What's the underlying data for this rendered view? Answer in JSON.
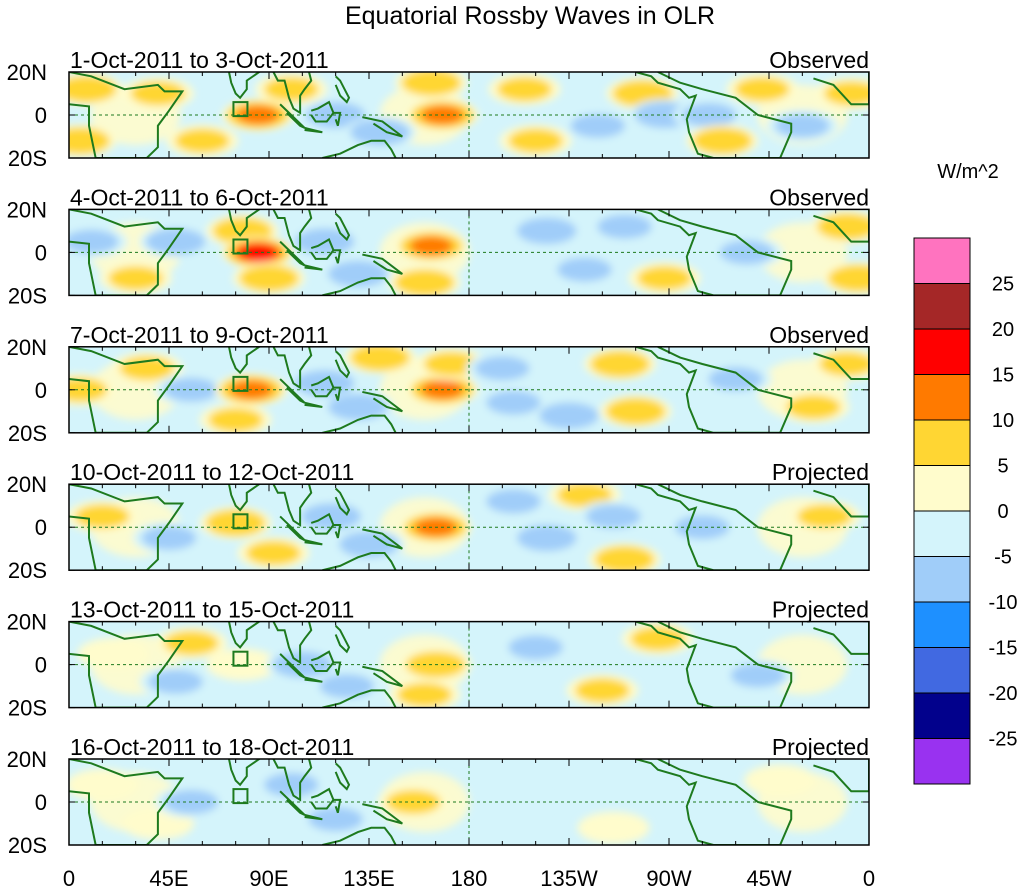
{
  "chart_data": {
    "type": "heatmap",
    "title": "Equatorial Rossby Waves in OLR",
    "units_label": "W/m^2",
    "y_tick_labels": [
      "20N",
      "0",
      "20S"
    ],
    "x_tick_labels": [
      "0",
      "45E",
      "90E",
      "135E",
      "180",
      "135W",
      "90W",
      "45W",
      "0"
    ],
    "x_range_deg_east": [
      0,
      360
    ],
    "y_range_deg": [
      -20,
      20
    ],
    "colorbar": {
      "levels": [
        -25,
        -20,
        -15,
        -10,
        -5,
        0,
        5,
        10,
        15,
        20,
        25
      ],
      "tick_labels": [
        "25",
        "20",
        "15",
        "10",
        "5",
        "0",
        "-5",
        "-10",
        "-15",
        "-20",
        "-25"
      ],
      "colors": [
        "#9932f0",
        "#02018c",
        "#4169e1",
        "#1e90ff",
        "#a0cdf9",
        "#d4f4fb",
        "#fffccc",
        "#ffd633",
        "#ff7a00",
        "#ff0000",
        "#a52727",
        "#ff73bf"
      ]
    },
    "panels": [
      {
        "date_range": "1-Oct-2011 to 3-Oct-2011",
        "status": "Observed",
        "features": [
          {
            "lon": 8,
            "lat": 12,
            "value": 11
          },
          {
            "lon": 5,
            "lat": -12,
            "value": 11
          },
          {
            "lon": 40,
            "lat": 10,
            "value": 7
          },
          {
            "lon": 60,
            "lat": -12,
            "value": 7
          },
          {
            "lon": 85,
            "lat": 0,
            "value": 13
          },
          {
            "lon": 100,
            "lat": 12,
            "value": 6
          },
          {
            "lon": 120,
            "lat": 0,
            "value": -11
          },
          {
            "lon": 140,
            "lat": -8,
            "value": -9
          },
          {
            "lon": 163,
            "lat": 15,
            "value": 11
          },
          {
            "lon": 168,
            "lat": 0,
            "value": 13
          },
          {
            "lon": 205,
            "lat": 12,
            "value": 8
          },
          {
            "lon": 210,
            "lat": -12,
            "value": 7
          },
          {
            "lon": 238,
            "lat": -5,
            "value": -8
          },
          {
            "lon": 258,
            "lat": 10,
            "value": 9
          },
          {
            "lon": 268,
            "lat": 0,
            "value": -11
          },
          {
            "lon": 288,
            "lat": 0,
            "value": -8
          },
          {
            "lon": 294,
            "lat": -12,
            "value": 10
          },
          {
            "lon": 312,
            "lat": 12,
            "value": 6
          },
          {
            "lon": 330,
            "lat": -5,
            "value": -7
          },
          {
            "lon": 352,
            "lat": 10,
            "value": 6
          }
        ]
      },
      {
        "date_range": "4-Oct-2011 to 6-Oct-2011",
        "status": "Observed",
        "features": [
          {
            "lon": 10,
            "lat": 5,
            "value": -8
          },
          {
            "lon": 30,
            "lat": -12,
            "value": 7
          },
          {
            "lon": 48,
            "lat": 5,
            "value": -9
          },
          {
            "lon": 78,
            "lat": 10,
            "value": 9
          },
          {
            "lon": 85,
            "lat": 0,
            "value": 18
          },
          {
            "lon": 90,
            "lat": -12,
            "value": 9
          },
          {
            "lon": 115,
            "lat": 5,
            "value": -11
          },
          {
            "lon": 130,
            "lat": -10,
            "value": -12
          },
          {
            "lon": 163,
            "lat": 3,
            "value": 13
          },
          {
            "lon": 160,
            "lat": -14,
            "value": 10
          },
          {
            "lon": 215,
            "lat": 10,
            "value": -9
          },
          {
            "lon": 232,
            "lat": -8,
            "value": -8
          },
          {
            "lon": 250,
            "lat": 12,
            "value": -7
          },
          {
            "lon": 268,
            "lat": -12,
            "value": 7
          },
          {
            "lon": 305,
            "lat": 0,
            "value": -8
          },
          {
            "lon": 350,
            "lat": 12,
            "value": 10
          },
          {
            "lon": 355,
            "lat": -12,
            "value": 9
          }
        ]
      },
      {
        "date_range": "7-Oct-2011 to 9-Oct-2011",
        "status": "Observed",
        "features": [
          {
            "lon": 5,
            "lat": 0,
            "value": 6
          },
          {
            "lon": 35,
            "lat": 10,
            "value": 6
          },
          {
            "lon": 55,
            "lat": 0,
            "value": -7
          },
          {
            "lon": 82,
            "lat": 0,
            "value": 13
          },
          {
            "lon": 75,
            "lat": -14,
            "value": 7
          },
          {
            "lon": 115,
            "lat": 3,
            "value": -11
          },
          {
            "lon": 130,
            "lat": -8,
            "value": -12
          },
          {
            "lon": 140,
            "lat": 15,
            "value": 10
          },
          {
            "lon": 168,
            "lat": 0,
            "value": 13
          },
          {
            "lon": 172,
            "lat": 12,
            "value": 8
          },
          {
            "lon": 195,
            "lat": 10,
            "value": -8
          },
          {
            "lon": 200,
            "lat": -6,
            "value": -7
          },
          {
            "lon": 225,
            "lat": -12,
            "value": -11
          },
          {
            "lon": 255,
            "lat": -10,
            "value": 9
          },
          {
            "lon": 248,
            "lat": 12,
            "value": 9
          },
          {
            "lon": 300,
            "lat": 5,
            "value": -7
          },
          {
            "lon": 335,
            "lat": -8,
            "value": 6
          },
          {
            "lon": 350,
            "lat": 12,
            "value": 8
          }
        ]
      },
      {
        "date_range": "10-Oct-2011 to 12-Oct-2011",
        "status": "Projected",
        "features": [
          {
            "lon": 15,
            "lat": 5,
            "value": 5
          },
          {
            "lon": 45,
            "lat": -5,
            "value": -7
          },
          {
            "lon": 75,
            "lat": 2,
            "value": 9
          },
          {
            "lon": 92,
            "lat": -12,
            "value": 7
          },
          {
            "lon": 118,
            "lat": 5,
            "value": -11
          },
          {
            "lon": 135,
            "lat": -8,
            "value": -10
          },
          {
            "lon": 165,
            "lat": 0,
            "value": 13
          },
          {
            "lon": 200,
            "lat": 12,
            "value": -7
          },
          {
            "lon": 215,
            "lat": -5,
            "value": -9
          },
          {
            "lon": 232,
            "lat": 15,
            "value": 8
          },
          {
            "lon": 250,
            "lat": -15,
            "value": 9
          },
          {
            "lon": 245,
            "lat": 5,
            "value": -6
          },
          {
            "lon": 285,
            "lat": 0,
            "value": -6
          },
          {
            "lon": 340,
            "lat": 5,
            "value": 6
          }
        ]
      },
      {
        "date_range": "13-Oct-2011 to 15-Oct-2011",
        "status": "Projected",
        "features": [
          {
            "lon": 20,
            "lat": 5,
            "value": 4
          },
          {
            "lon": 48,
            "lat": -8,
            "value": -6
          },
          {
            "lon": 55,
            "lat": 10,
            "value": 5
          },
          {
            "lon": 78,
            "lat": 0,
            "value": 4
          },
          {
            "lon": 105,
            "lat": 0,
            "value": -9
          },
          {
            "lon": 125,
            "lat": -10,
            "value": -7
          },
          {
            "lon": 165,
            "lat": 0,
            "value": 9
          },
          {
            "lon": 160,
            "lat": -14,
            "value": 7
          },
          {
            "lon": 210,
            "lat": 8,
            "value": -6
          },
          {
            "lon": 240,
            "lat": -12,
            "value": 7
          },
          {
            "lon": 265,
            "lat": 12,
            "value": 5
          },
          {
            "lon": 310,
            "lat": -5,
            "value": -5
          }
        ]
      },
      {
        "date_range": "16-Oct-2011 to 18-Oct-2011",
        "status": "Projected",
        "features": [
          {
            "lon": 15,
            "lat": 8,
            "value": 4
          },
          {
            "lon": 40,
            "lat": -10,
            "value": 4
          },
          {
            "lon": 55,
            "lat": 0,
            "value": -5
          },
          {
            "lon": 100,
            "lat": 8,
            "value": -5
          },
          {
            "lon": 120,
            "lat": -8,
            "value": -6
          },
          {
            "lon": 155,
            "lat": 0,
            "value": 5
          },
          {
            "lon": 200,
            "lat": 0,
            "value": -4
          },
          {
            "lon": 245,
            "lat": -12,
            "value": 4
          },
          {
            "lon": 320,
            "lat": 10,
            "value": 4
          }
        ]
      }
    ]
  }
}
